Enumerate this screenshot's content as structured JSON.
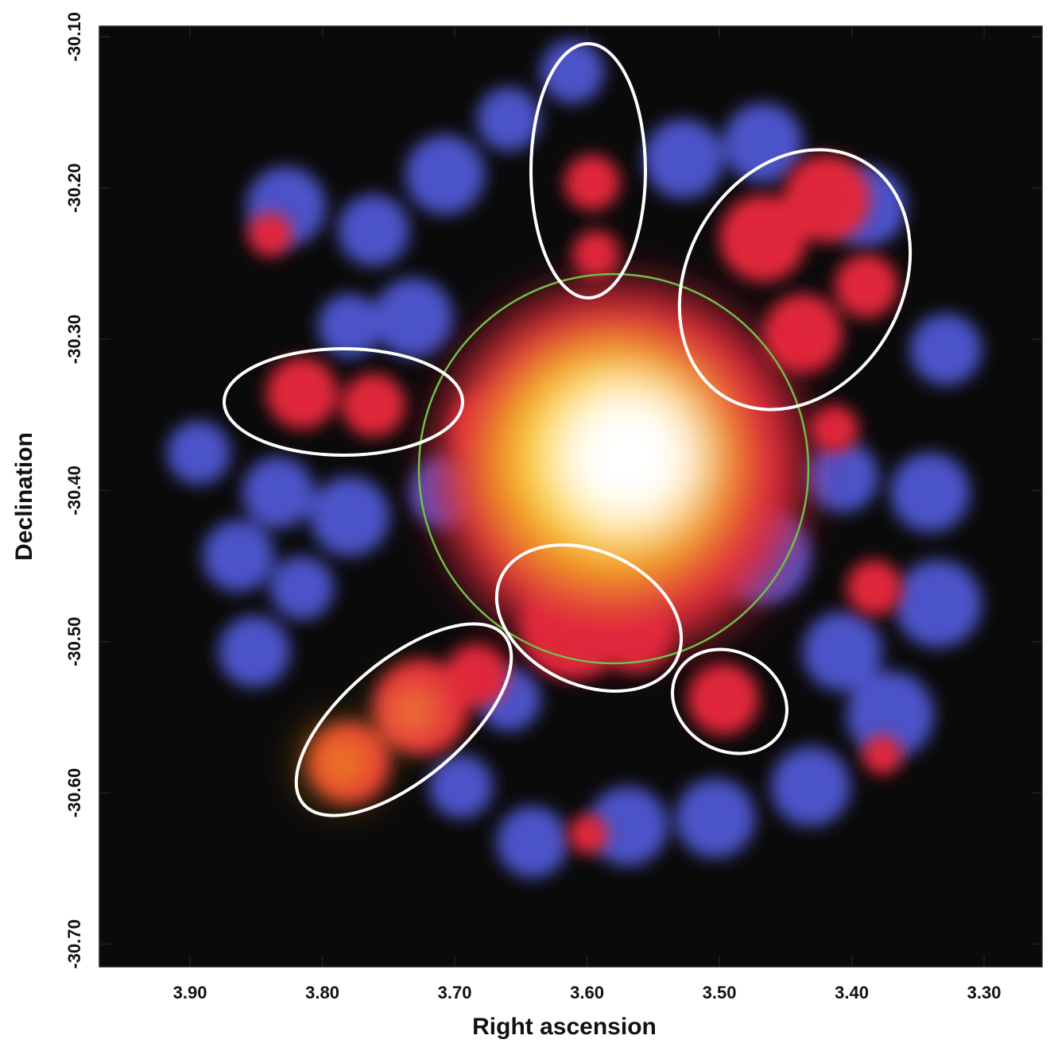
{
  "chart_data": {
    "type": "image",
    "xlabel": "Right ascension",
    "ylabel": "Declination",
    "xlim": [
      3.9685,
      3.2562
    ],
    "ylim": [
      -30.093,
      -30.715
    ],
    "xticks": [
      {
        "value": 3.9,
        "label": "3.90"
      },
      {
        "value": 3.8,
        "label": "3.80"
      },
      {
        "value": 3.7,
        "label": "3.70"
      },
      {
        "value": 3.6,
        "label": "3.60"
      },
      {
        "value": 3.5,
        "label": "3.50"
      },
      {
        "value": 3.4,
        "label": "3.40"
      },
      {
        "value": 3.3,
        "label": "3.30"
      }
    ],
    "yticks": [
      {
        "value": -30.1,
        "label": "-30.10"
      },
      {
        "value": -30.2,
        "label": "-30.20"
      },
      {
        "value": -30.3,
        "label": "-30.30"
      },
      {
        "value": -30.4,
        "label": "-30.40"
      },
      {
        "value": -30.5,
        "label": "-30.50"
      },
      {
        "value": -30.6,
        "label": "-30.60"
      },
      {
        "value": -30.7,
        "label": "-30.70"
      }
    ]
  }
}
